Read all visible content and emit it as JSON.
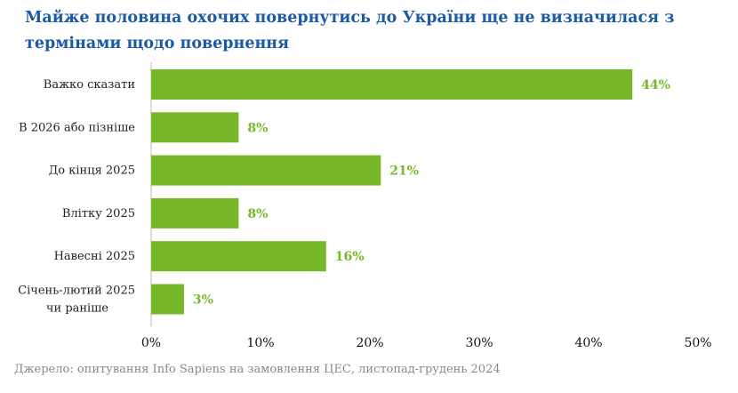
{
  "chart_data": {
    "type": "bar",
    "orientation": "horizontal",
    "title": "Майже половина охочих повернутись до України ще не визначилася з термінами щодо повернення",
    "categories": [
      "Важко сказати",
      "В 2026 або пізніше",
      "До кінця 2025",
      "Влітку 2025",
      "Навесні 2025",
      "Січень-лютий 2025 чи раніше"
    ],
    "category_lines": [
      [
        "Важко сказати"
      ],
      [
        "В 2026 або пізніше"
      ],
      [
        "До кінця 2025"
      ],
      [
        "Влітку 2025"
      ],
      [
        "Навесні 2025"
      ],
      [
        "Січень-лютий 2025",
        "чи раніше"
      ]
    ],
    "values": [
      44,
      8,
      21,
      8,
      16,
      3
    ],
    "value_labels": [
      "44%",
      "8%",
      "21%",
      "8%",
      "16%",
      "3%"
    ],
    "xlim": [
      0,
      50
    ],
    "x_ticks": [
      0,
      10,
      20,
      30,
      40,
      50
    ],
    "x_tick_labels": [
      "0%",
      "10%",
      "20%",
      "30%",
      "40%",
      "50%"
    ],
    "grid": false,
    "bar_color": "#76b82a",
    "label_color": "#76b82a",
    "title_color": "#1b5aa8"
  },
  "source": "Джерело: опитування Info Sapiens на замовлення ЦЕС, листопад-грудень 2024"
}
